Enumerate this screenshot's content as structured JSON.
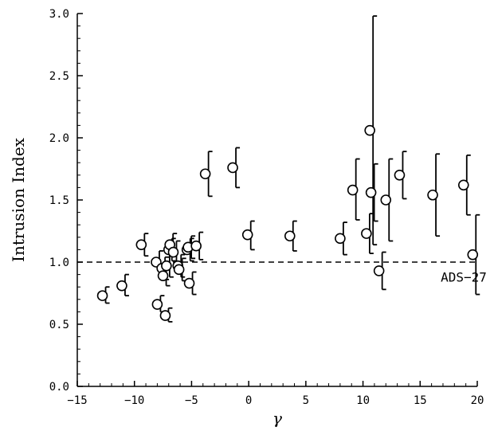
{
  "chart_data": {
    "type": "scatter",
    "xlabel": "γ",
    "ylabel": "Intrusion Index",
    "xlim": [
      -15,
      20
    ],
    "ylim": [
      0.0,
      3.0
    ],
    "xticks": [
      -15,
      -10,
      -5,
      0,
      5,
      10,
      15,
      20
    ],
    "xtick_labels": [
      "−15",
      "−10",
      "−5",
      "0",
      "5",
      "10",
      "15",
      "20"
    ],
    "yticks": [
      0.0,
      0.5,
      1.0,
      1.5,
      2.0,
      2.5,
      3.0
    ],
    "ytick_labels": [
      "0.0",
      "0.5",
      "1.0",
      "1.5",
      "2.0",
      "2.5",
      "3.0"
    ],
    "grid": false,
    "reference_line": {
      "y": 1.0,
      "style": "dashed"
    },
    "annotations": [
      {
        "text": "ADS−27",
        "x": 16.8,
        "y": 0.88
      }
    ],
    "series": [
      {
        "marker": "open-circle",
        "points": [
          {
            "x": -12.8,
            "y": 0.73,
            "low": 0.67,
            "high": 0.8
          },
          {
            "x": -11.1,
            "y": 0.81,
            "low": 0.73,
            "high": 0.9
          },
          {
            "x": -9.4,
            "y": 1.14,
            "low": 1.05,
            "high": 1.23
          },
          {
            "x": -8.1,
            "y": 1.0,
            "low": 0.91,
            "high": 1.09
          },
          {
            "x": -8.0,
            "y": 0.66,
            "low": 0.6,
            "high": 0.73
          },
          {
            "x": -7.6,
            "y": 0.95,
            "low": 0.86,
            "high": 1.04
          },
          {
            "x": -7.5,
            "y": 0.89,
            "low": 0.81,
            "high": 0.97
          },
          {
            "x": -7.3,
            "y": 0.57,
            "low": 0.52,
            "high": 0.63
          },
          {
            "x": -7.2,
            "y": 0.97,
            "low": 0.88,
            "high": 1.06
          },
          {
            "x": -7.0,
            "y": 1.1,
            "low": 1.01,
            "high": 1.19
          },
          {
            "x": -6.9,
            "y": 1.14,
            "low": 1.05,
            "high": 1.23
          },
          {
            "x": -6.6,
            "y": 1.08,
            "low": 0.99,
            "high": 1.17
          },
          {
            "x": -6.2,
            "y": 0.97,
            "low": 0.88,
            "high": 1.06
          },
          {
            "x": -6.1,
            "y": 0.94,
            "low": 0.85,
            "high": 1.03
          },
          {
            "x": -5.4,
            "y": 1.1,
            "low": 1.01,
            "high": 1.19
          },
          {
            "x": -5.3,
            "y": 1.12,
            "low": 1.03,
            "high": 1.21
          },
          {
            "x": -5.2,
            "y": 0.83,
            "low": 0.74,
            "high": 0.92
          },
          {
            "x": -4.6,
            "y": 1.13,
            "low": 1.02,
            "high": 1.24
          },
          {
            "x": -3.8,
            "y": 1.71,
            "low": 1.53,
            "high": 1.89
          },
          {
            "x": -1.4,
            "y": 1.76,
            "low": 1.6,
            "high": 1.92
          },
          {
            "x": -0.1,
            "y": 1.22,
            "low": 1.1,
            "high": 1.33
          },
          {
            "x": 3.6,
            "y": 1.21,
            "low": 1.09,
            "high": 1.33
          },
          {
            "x": 8.0,
            "y": 1.19,
            "low": 1.06,
            "high": 1.32
          },
          {
            "x": 9.1,
            "y": 1.58,
            "low": 1.34,
            "high": 1.83
          },
          {
            "x": 10.3,
            "y": 1.23,
            "low": 1.07,
            "high": 1.39
          },
          {
            "x": 10.6,
            "y": 2.06,
            "low": 1.14,
            "high": 2.98
          },
          {
            "x": 10.7,
            "y": 1.56,
            "low": 1.33,
            "high": 1.79
          },
          {
            "x": 11.4,
            "y": 0.93,
            "low": 0.78,
            "high": 1.08
          },
          {
            "x": 12.0,
            "y": 1.5,
            "low": 1.17,
            "high": 1.83
          },
          {
            "x": 13.2,
            "y": 1.7,
            "low": 1.51,
            "high": 1.89
          },
          {
            "x": 16.1,
            "y": 1.54,
            "low": 1.21,
            "high": 1.87
          },
          {
            "x": 18.8,
            "y": 1.62,
            "low": 1.38,
            "high": 1.86
          },
          {
            "x": 19.6,
            "y": 1.06,
            "low": 0.74,
            "high": 1.38
          }
        ]
      }
    ]
  }
}
